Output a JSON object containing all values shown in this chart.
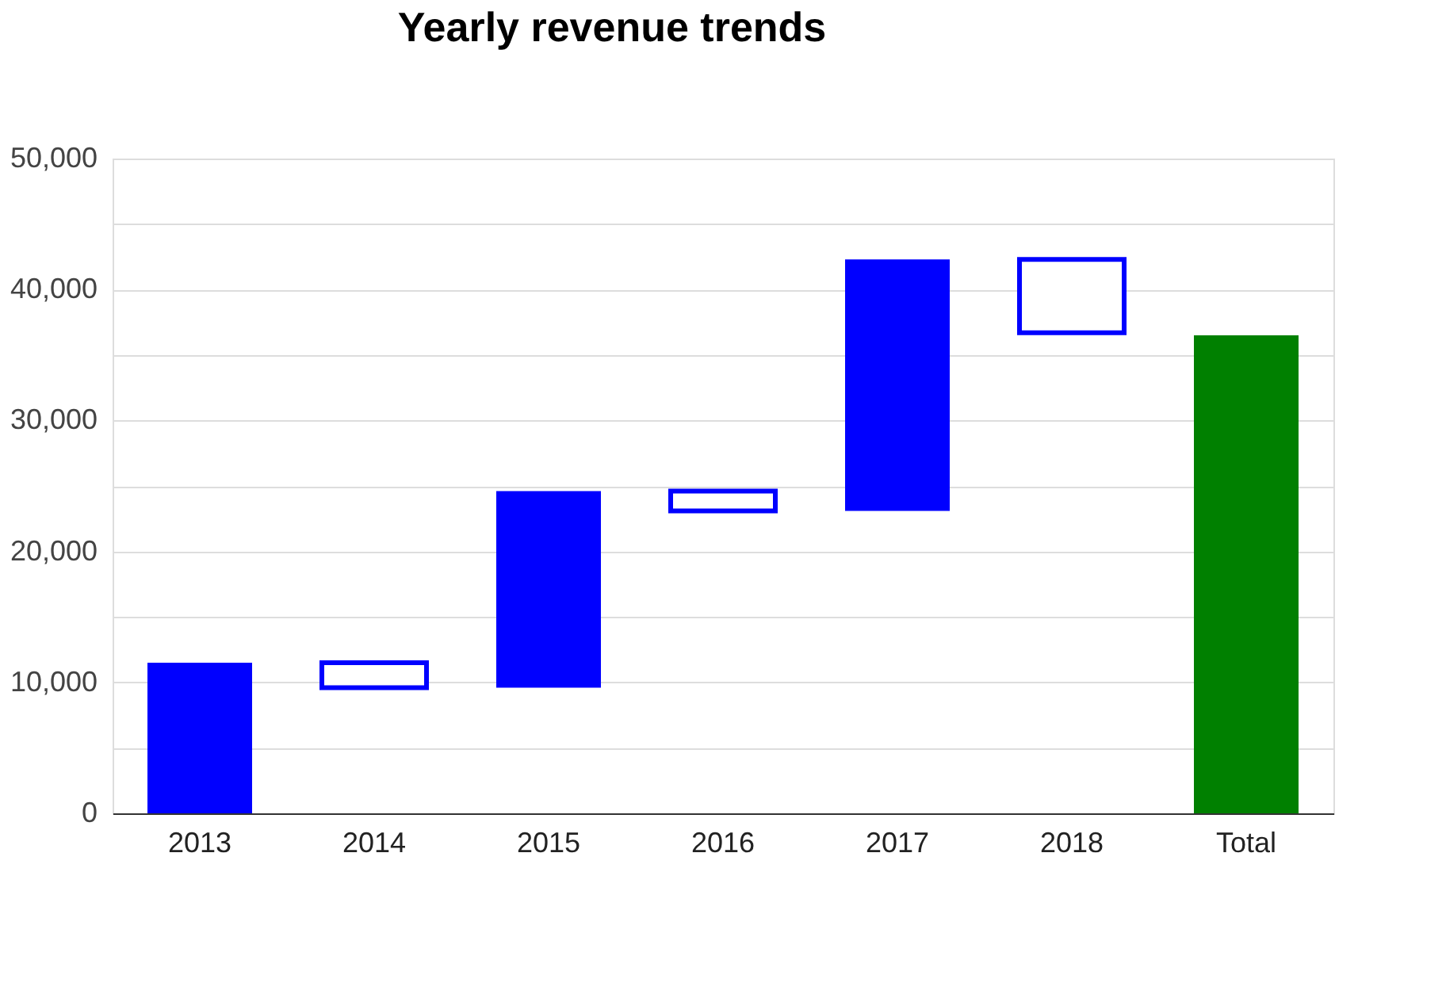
{
  "chart_data": {
    "type": "bar",
    "title": "Yearly revenue trends",
    "categories": [
      "2013",
      "2014",
      "2015",
      "2016",
      "2017",
      "2018",
      "Total"
    ],
    "values": [
      11500,
      -1900,
      15000,
      -1500,
      19200,
      -5600,
      36500
    ],
    "base": [
      0,
      11500,
      9600,
      24600,
      23100,
      42300,
      0
    ],
    "colors": [
      "#0000ff",
      "#0000ff",
      "#0000ff",
      "#0000ff",
      "#0000ff",
      "#0000ff",
      "#008000"
    ],
    "ylim": [
      0,
      50000
    ],
    "yticks": [
      0,
      {
        "value": 5000,
        "label": null
      },
      {
        "value": 10000,
        "label": "10,000"
      },
      {
        "value": 15000,
        "label": null
      },
      {
        "value": 20000,
        "label": "20,000"
      },
      {
        "value": 25000,
        "label": null
      },
      {
        "value": 30000,
        "label": "30,000"
      },
      {
        "value": 35000,
        "label": null
      },
      {
        "value": 40000,
        "label": "40,000"
      },
      {
        "value": 45000,
        "label": null
      },
      {
        "value": 50000,
        "label": "50,000"
      }
    ],
    "grid": "y"
  }
}
